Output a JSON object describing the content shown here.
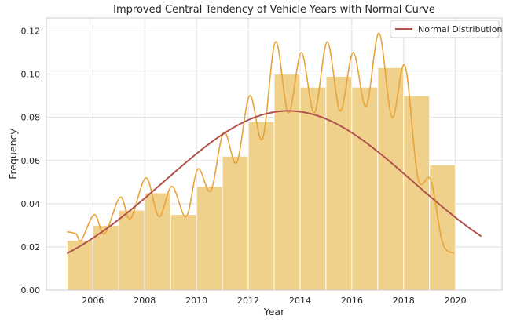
{
  "chart_data": {
    "type": "bar",
    "title": "Improved Central Tendency of Vehicle Years with Normal Curve",
    "xlabel": "Year",
    "ylabel": "Frequency",
    "xlim": [
      2004.2,
      2021.8
    ],
    "ylim": [
      0,
      0.126
    ],
    "grid": true,
    "legend_position": "top-right",
    "x_ticks": [
      2006,
      2008,
      2010,
      2012,
      2014,
      2016,
      2018,
      2020
    ],
    "y_ticks": [
      0.0,
      0.02,
      0.04,
      0.06,
      0.08,
      0.1,
      0.12
    ],
    "x_tick_labels": [
      "2006",
      "2008",
      "2010",
      "2012",
      "2014",
      "2016",
      "2018",
      "2020"
    ],
    "y_tick_labels": [
      "0.00",
      "0.02",
      "0.04",
      "0.06",
      "0.08",
      "0.10",
      "0.12"
    ],
    "histogram": {
      "bin_edges": [
        2005,
        2006,
        2007,
        2008,
        2009,
        2010,
        2011,
        2012,
        2013,
        2014,
        2015,
        2016,
        2017,
        2018,
        2019,
        2020
      ],
      "values": [
        0.023,
        0.03,
        0.037,
        0.045,
        0.035,
        0.048,
        0.062,
        0.078,
        0.1,
        0.094,
        0.099,
        0.094,
        0.103,
        0.09,
        0.058
      ],
      "color": "#f0d18b",
      "edge_color": "#ffffff"
    },
    "kde": {
      "color": "#e8a33a",
      "x": [
        2005.0,
        2005.35,
        2005.55,
        2006.05,
        2006.45,
        2007.05,
        2007.45,
        2008.05,
        2008.55,
        2009.05,
        2009.6,
        2010.05,
        2010.55,
        2011.05,
        2011.55,
        2012.05,
        2012.55,
        2013.05,
        2013.55,
        2014.05,
        2014.55,
        2015.05,
        2015.55,
        2016.05,
        2016.55,
        2017.05,
        2017.55,
        2018.05,
        2018.55,
        2019.05,
        2019.5,
        2019.95
      ],
      "y": [
        0.027,
        0.026,
        0.023,
        0.035,
        0.026,
        0.043,
        0.033,
        0.052,
        0.034,
        0.048,
        0.034,
        0.056,
        0.046,
        0.073,
        0.059,
        0.09,
        0.07,
        0.115,
        0.082,
        0.11,
        0.082,
        0.115,
        0.083,
        0.11,
        0.085,
        0.119,
        0.08,
        0.104,
        0.052,
        0.051,
        0.022,
        0.017
      ]
    },
    "series": [
      {
        "name": "Normal Distribution",
        "type": "line",
        "color": "#b1524c",
        "mean": 2013.55,
        "std": 4.8,
        "peak": 0.083,
        "x_start": 2005,
        "x_end": 2021
      }
    ]
  }
}
